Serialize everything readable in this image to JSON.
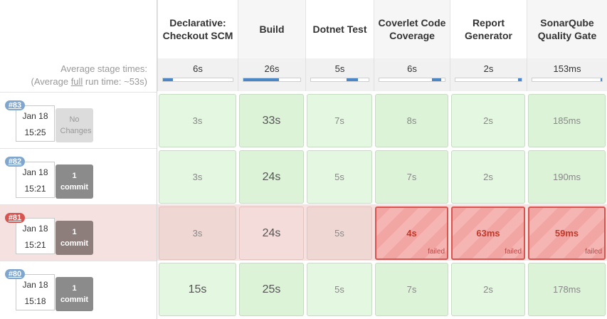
{
  "stages": [
    {
      "name": "Declarative: Checkout SCM",
      "avg": "6s",
      "bar": [
        0.0,
        0.14
      ]
    },
    {
      "name": "Build",
      "avg": "26s",
      "bar": [
        0.0,
        0.62
      ]
    },
    {
      "name": "Dotnet Test",
      "avg": "5s",
      "bar": [
        0.62,
        0.82
      ]
    },
    {
      "name": "Coverlet Code Coverage",
      "avg": "6s",
      "bar": [
        0.8,
        0.95
      ]
    },
    {
      "name": "Report Generator",
      "avg": "2s",
      "bar": [
        0.95,
        1.0
      ]
    },
    {
      "name": "SonarQube Quality Gate",
      "avg": "153ms",
      "bar": [
        0.98,
        1.0
      ]
    }
  ],
  "avg_label": {
    "line1": "Average stage times:",
    "line2_prefix": "(Average ",
    "line2_link": "full",
    "line2_suffix": " run time: ~53s)"
  },
  "runs": [
    {
      "id": "#83",
      "date": "Jan 18",
      "time": "15:25",
      "changes": "No Changes",
      "status": "success",
      "times": [
        "3s",
        "33s",
        "7s",
        "8s",
        "2s",
        "185ms"
      ]
    },
    {
      "id": "#82",
      "date": "Jan 18",
      "time": "15:21",
      "changes": "1 commit",
      "status": "success",
      "times": [
        "3s",
        "24s",
        "5s",
        "7s",
        "2s",
        "190ms"
      ]
    },
    {
      "id": "#81",
      "date": "Jan 18",
      "time": "15:21",
      "changes": "1 commit",
      "status": "failed",
      "times": [
        "3s",
        "24s",
        "5s",
        "4s",
        "63ms",
        "59ms"
      ],
      "failed_label": "failed"
    },
    {
      "id": "#80",
      "date": "Jan 18",
      "time": "15:18",
      "changes": "1 commit",
      "status": "success",
      "times": [
        "15s",
        "25s",
        "5s",
        "7s",
        "2s",
        "178ms"
      ]
    }
  ],
  "colors": {
    "success_badge": "#7ea6cf",
    "failed_badge": "#d9534f",
    "bar_fill": "#4b86c6"
  }
}
